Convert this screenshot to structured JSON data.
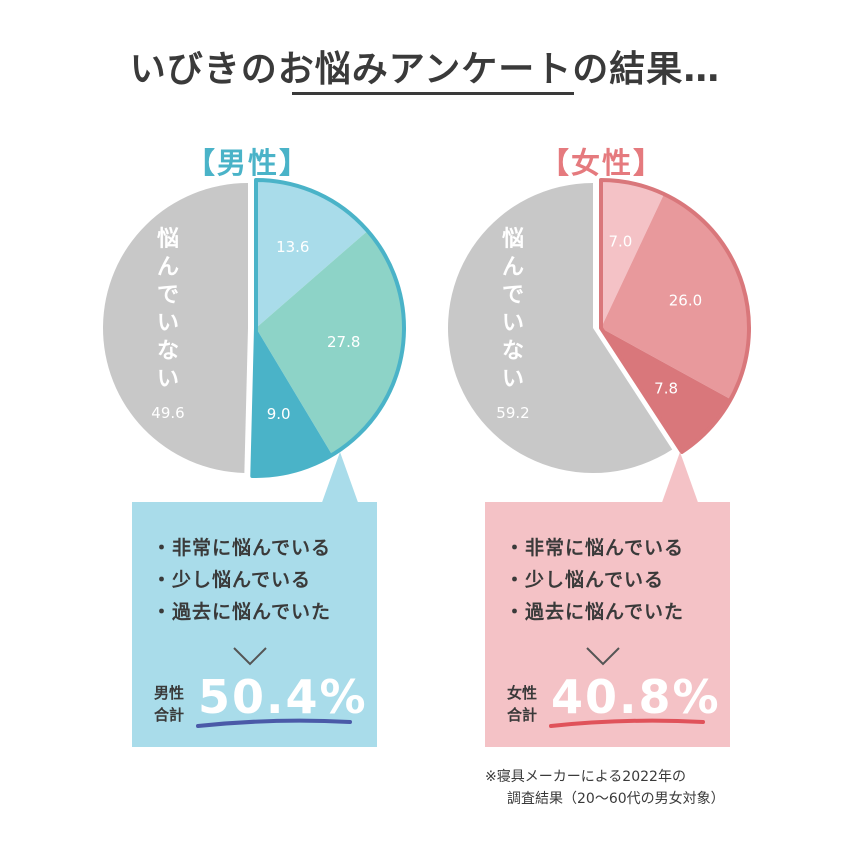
{
  "title": "いびきのお悩みアンケートの結果…",
  "male": {
    "heading": "【男性】",
    "not_suffering_label": "悩んでいない",
    "total_label_line1": "男性",
    "total_label_line2": "合計",
    "total_value": "50.4%"
  },
  "female": {
    "heading": "【女性】",
    "not_suffering_label": "悩んでいない",
    "total_label_line1": "女性",
    "total_label_line2": "合計",
    "total_value": "40.8%"
  },
  "legend": {
    "items": [
      "・非常に悩んでいる",
      "・少し悩んでいる",
      "・過去に悩んでいた"
    ]
  },
  "footnote": {
    "line1": "※寝具メーカーによる2022年の",
    "line2": "調査結果（20〜60代の男女対象）"
  },
  "colors": {
    "male_very": "#a9dcea",
    "male_slightly": "#8dd3c7",
    "male_past": "#4ab3c8",
    "male_outline": "#4ab3c8",
    "female_very": "#f4c2c6",
    "female_slightly": "#e8999c",
    "female_past": "#d9777b",
    "female_outline": "#d9777b",
    "not_suffering": "#c8c8c8",
    "underline_male": "#4a5aa8",
    "underline_female": "#e0525a"
  },
  "chart_data": [
    {
      "type": "pie",
      "heading": "【男性】",
      "categories": [
        "非常に悩んでいる",
        "少し悩んでいる",
        "過去に悩んでいた",
        "悩んでいない"
      ],
      "values": [
        13.6,
        27.8,
        9.0,
        49.6
      ],
      "labels": [
        "13.6",
        "27.8",
        "9.0",
        "49.6"
      ]
    },
    {
      "type": "pie",
      "heading": "【女性】",
      "categories": [
        "非常に悩んでいる",
        "少し悩んでいる",
        "過去に悩んでいた",
        "悩んでいない"
      ],
      "values": [
        7.0,
        26.0,
        7.8,
        59.2
      ],
      "labels": [
        "7.0",
        "26.0",
        "7.8",
        "59.2"
      ]
    }
  ]
}
